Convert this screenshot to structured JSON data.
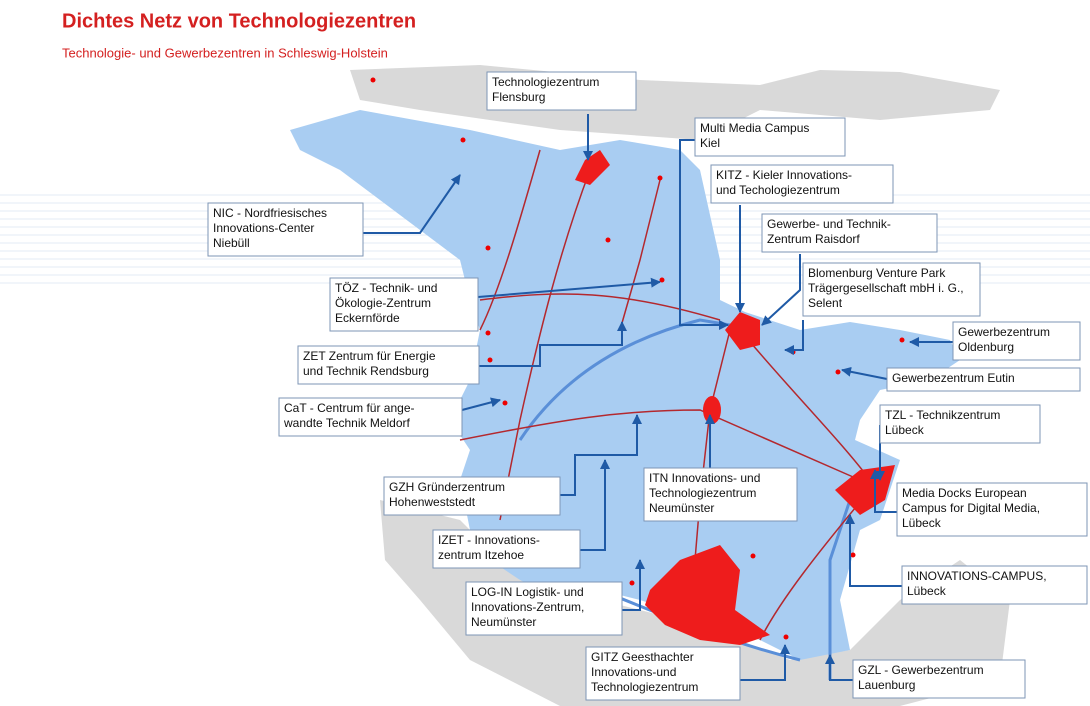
{
  "header": {
    "title": "Dichtes Netz von Technologiezentren",
    "subtitle": "Technologie- und Gewerbezentren in Schleswig-Holstein"
  },
  "labels": [
    {
      "lines": [
        "Technologiezentrum",
        "Flensburg"
      ]
    },
    {
      "lines": [
        "Multi Media Campus",
        "Kiel"
      ]
    },
    {
      "lines": [
        "KITZ - Kieler Innovations-",
        "und Techologiezentrum"
      ]
    },
    {
      "lines": [
        "Gewerbe- und Technik-",
        "Zentrum Raisdorf"
      ]
    },
    {
      "lines": [
        "Blomenburg Venture Park",
        "Trägergesellschaft mbH i. G.,",
        "Selent"
      ]
    },
    {
      "lines": [
        "Gewerbezentrum",
        "Oldenburg"
      ]
    },
    {
      "lines": [
        "Gewerbezentrum Eutin"
      ]
    },
    {
      "lines": [
        "TZL - Technikzentrum",
        "Lübeck"
      ]
    },
    {
      "lines": [
        "Media Docks European",
        "Campus for Digital Media,",
        "Lübeck"
      ]
    },
    {
      "lines": [
        "INNOVATIONS-CAMPUS,",
        "Lübeck"
      ]
    },
    {
      "lines": [
        "GZL - Gewerbezentrum",
        "Lauenburg"
      ]
    },
    {
      "lines": [
        "GITZ Geesthachter",
        "Innovations-und",
        "Technologiezentrum"
      ]
    },
    {
      "lines": [
        "LOG-IN Logistik- und",
        "Innovations-Zentrum,",
        "Neumünster"
      ]
    },
    {
      "lines": [
        "IZET - Innovations-",
        "zentrum Itzehoe"
      ]
    },
    {
      "lines": [
        "GZH Gründerzentrum",
        "Hohenweststedt"
      ]
    },
    {
      "lines": [
        "ITN Innovations- und",
        "Technologiezentrum",
        "Neumünster"
      ]
    },
    {
      "lines": [
        "CaT - Centrum für ange-",
        "wandte Technik Meldorf"
      ]
    },
    {
      "lines": [
        "ZET Zentrum für Energie",
        "und Technik Rendsburg"
      ]
    },
    {
      "lines": [
        "TÖZ - Technik- und",
        "Ökologie-Zentrum",
        "Eckernförde"
      ]
    },
    {
      "lines": [
        "NIC - Nordfriesisches",
        "Innovations-Center",
        "Niebüll"
      ]
    }
  ]
}
